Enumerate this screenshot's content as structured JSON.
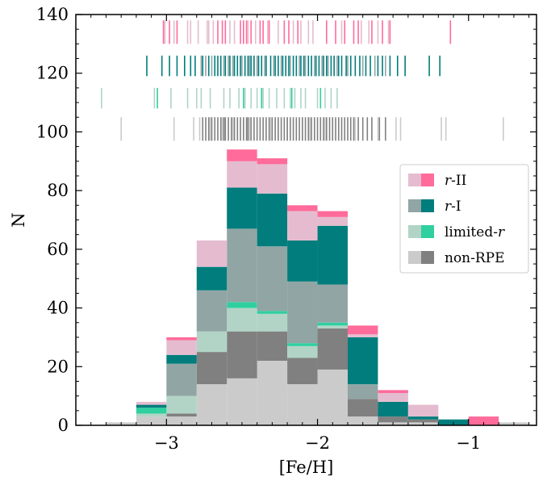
{
  "chart_data": {
    "type": "bar",
    "subtype": "stacked-histogram",
    "title": "",
    "xlabel": "[Fe/H]",
    "ylabel": "N",
    "xlim": [
      -3.6,
      -0.55
    ],
    "ylim": [
      0,
      140
    ],
    "x_ticks": [
      -3,
      -2,
      -1
    ],
    "x_tick_labels": [
      "−3",
      "−2",
      "−1"
    ],
    "y_ticks": [
      0,
      20,
      40,
      60,
      80,
      100,
      120,
      140
    ],
    "y_tick_labels": [
      "0",
      "20",
      "40",
      "60",
      "80",
      "100",
      "120",
      "140"
    ],
    "bin_width": 0.2,
    "bins_left": [
      -3.4,
      -3.2,
      -3.0,
      -2.8,
      -2.6,
      -2.4,
      -2.2,
      -2.0,
      -1.8,
      -1.6,
      -1.4,
      -1.2,
      -1.0,
      -0.8
    ],
    "legend": {
      "position": "right",
      "entries": [
        {
          "label_prefix": "r",
          "label_suffix": "-II"
        },
        {
          "label_prefix": "r",
          "label_suffix": "-I"
        },
        {
          "label_prefix": "limited-",
          "label_suffix": "r"
        },
        {
          "label_prefix": "non-RPE",
          "label_suffix": ""
        }
      ]
    },
    "series": [
      {
        "key": "nonrpe_light",
        "values": [
          1,
          3,
          3,
          14,
          16,
          22,
          14,
          19,
          3,
          1,
          1,
          0,
          0,
          1
        ],
        "color": "#cbcbcb"
      },
      {
        "key": "nonrpe_dark",
        "values": [
          0,
          0,
          1,
          11,
          16,
          10,
          9,
          14,
          6,
          2,
          1,
          0,
          0,
          0
        ],
        "color": "#808080"
      },
      {
        "key": "limited_light",
        "values": [
          0,
          1,
          6,
          7,
          8,
          6,
          4,
          1,
          0,
          0,
          0,
          0,
          0,
          0
        ],
        "color": "#b1d4c6"
      },
      {
        "key": "limited_dark",
        "values": [
          0,
          2,
          0,
          0,
          2,
          1,
          1,
          1,
          0,
          0,
          0,
          0,
          0,
          0
        ],
        "color": "#2fcf9f"
      },
      {
        "key": "rI_light",
        "values": [
          0,
          0,
          11,
          14,
          25,
          22,
          21,
          13,
          5,
          0,
          0,
          0,
          0,
          0
        ],
        "color": "#91a5a5"
      },
      {
        "key": "rI_dark",
        "values": [
          0,
          1,
          3,
          8,
          14,
          18,
          14,
          20,
          16,
          5,
          1,
          2,
          0,
          0
        ],
        "color": "#007d7c"
      },
      {
        "key": "rII_light",
        "values": [
          0,
          1,
          5,
          9,
          9,
          10,
          10,
          3,
          1,
          3,
          4,
          0,
          0,
          0
        ],
        "color": "#e5bccf"
      },
      {
        "key": "rII_dark",
        "values": [
          0,
          0,
          1,
          0,
          4,
          2,
          2,
          2,
          3,
          1,
          0,
          0,
          3,
          0
        ],
        "color": "#ff6b9a"
      }
    ],
    "rug_rows": [
      {
        "y": 130,
        "height": 8,
        "color_light": "#e5bccf",
        "color_dark": "#ff6b9a",
        "light": [
          -3.01,
          -2.95,
          -2.86,
          -2.84,
          -2.79,
          -2.73,
          -2.72,
          -2.69,
          -2.58,
          -2.55,
          -2.46,
          -2.41,
          -2.33,
          -2.26,
          -2.16,
          -2.11,
          -2.06,
          -2.03,
          -1.84,
          -1.71,
          -1.66,
          -1.6,
          -1.53
        ],
        "dark": [
          -3.02,
          -2.98,
          -2.93,
          -2.66,
          -2.63,
          -2.61,
          -2.51,
          -2.49,
          -2.47,
          -2.44,
          -2.38,
          -2.36,
          -2.32,
          -2.22,
          -2.19,
          -2.13,
          -1.94,
          -1.88,
          -1.82,
          -1.76,
          -1.73,
          -1.64,
          -1.57,
          -1.52,
          -1.12
        ]
      },
      {
        "y": 119,
        "height": 7,
        "color_light": "#91a5a5",
        "color_dark": "#007d7c",
        "light": [
          -2.77,
          -2.74,
          -2.7,
          -2.62,
          -2.59,
          -2.56,
          -2.5,
          -2.45,
          -2.4,
          -2.35,
          -2.29,
          -2.24,
          -2.18,
          -2.12,
          -2.08,
          -2.02,
          -1.97,
          -1.93,
          -1.87,
          -1.8,
          -1.7,
          -1.62,
          -1.55
        ],
        "dark": [
          -3.13,
          -3.03,
          -2.98,
          -2.93,
          -2.88,
          -2.84,
          -2.81,
          -2.76,
          -2.72,
          -2.68,
          -2.66,
          -2.64,
          -2.61,
          -2.58,
          -2.55,
          -2.53,
          -2.51,
          -2.48,
          -2.46,
          -2.44,
          -2.42,
          -2.39,
          -2.37,
          -2.34,
          -2.31,
          -2.28,
          -2.26,
          -2.23,
          -2.21,
          -2.19,
          -2.16,
          -2.14,
          -2.11,
          -2.09,
          -2.06,
          -2.04,
          -2.01,
          -1.99,
          -1.96,
          -1.94,
          -1.91,
          -1.89,
          -1.86,
          -1.84,
          -1.81,
          -1.78,
          -1.75,
          -1.72,
          -1.68,
          -1.65,
          -1.6,
          -1.57,
          -1.52,
          -1.47,
          -1.42,
          -1.26,
          -1.19
        ]
      },
      {
        "y": 108,
        "height": 7,
        "color_light": "#b1d4c6",
        "color_dark": "#2fcf9f",
        "light": [
          -3.43,
          -3.08,
          -2.97,
          -2.86,
          -2.8,
          -2.77,
          -2.71,
          -2.62,
          -2.58,
          -2.52,
          -2.48,
          -2.44,
          -2.4,
          -2.36,
          -2.32,
          -2.27,
          -2.22,
          -2.18,
          -2.15,
          -2.11,
          -2.08,
          -2.0,
          -1.95,
          -1.91,
          -1.87
        ],
        "dark": [
          -3.06,
          -2.49,
          -2.37,
          -2.17,
          -1.98
        ]
      },
      {
        "y": 97,
        "height": 8,
        "color_light": "#cbcbcb",
        "color_dark": "#808080",
        "light": [
          -3.3,
          -2.95,
          -2.82,
          -2.78,
          -2.71,
          -2.63,
          -2.56,
          -2.45,
          -2.31,
          -2.2,
          -2.05,
          -1.95,
          -1.75,
          -1.6,
          -1.48,
          -1.45,
          -1.18,
          -1.15,
          -0.77
        ],
        "dark": [
          -2.76,
          -2.74,
          -2.72,
          -2.7,
          -2.68,
          -2.66,
          -2.64,
          -2.62,
          -2.61,
          -2.59,
          -2.57,
          -2.55,
          -2.53,
          -2.51,
          -2.49,
          -2.47,
          -2.46,
          -2.44,
          -2.42,
          -2.4,
          -2.38,
          -2.36,
          -2.34,
          -2.32,
          -2.3,
          -2.28,
          -2.26,
          -2.24,
          -2.22,
          -2.2,
          -2.18,
          -2.16,
          -2.14,
          -2.12,
          -2.1,
          -2.08,
          -2.06,
          -2.04,
          -2.02,
          -2.0,
          -1.98,
          -1.96,
          -1.94,
          -1.92,
          -1.9,
          -1.88,
          -1.86,
          -1.84,
          -1.82,
          -1.8,
          -1.78,
          -1.76,
          -1.73,
          -1.7,
          -1.67,
          -1.64,
          -1.59,
          -1.55
        ]
      }
    ]
  }
}
